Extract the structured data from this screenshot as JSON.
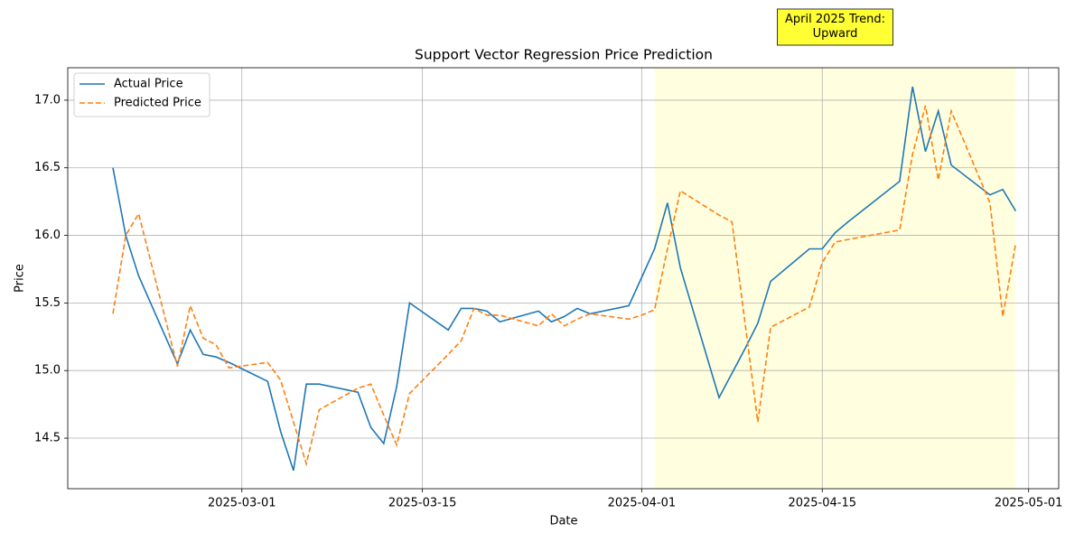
{
  "chart_data": {
    "type": "line",
    "title": "Support Vector Regression Price Prediction",
    "x_label": "Date",
    "y_label": "Price",
    "x": [
      "2025-02-19",
      "2025-02-20",
      "2025-02-21",
      "2025-02-24",
      "2025-02-25",
      "2025-02-26",
      "2025-02-27",
      "2025-02-28",
      "2025-03-03",
      "2025-03-04",
      "2025-03-05",
      "2025-03-06",
      "2025-03-07",
      "2025-03-10",
      "2025-03-11",
      "2025-03-12",
      "2025-03-13",
      "2025-03-14",
      "2025-03-17",
      "2025-03-18",
      "2025-03-19",
      "2025-03-20",
      "2025-03-21",
      "2025-03-24",
      "2025-03-25",
      "2025-03-26",
      "2025-03-27",
      "2025-03-28",
      "2025-03-31",
      "2025-04-01",
      "2025-04-02",
      "2025-04-03",
      "2025-04-04",
      "2025-04-07",
      "2025-04-08",
      "2025-04-09",
      "2025-04-10",
      "2025-04-11",
      "2025-04-14",
      "2025-04-15",
      "2025-04-16",
      "2025-04-17",
      "2025-04-21",
      "2025-04-22",
      "2025-04-23",
      "2025-04-24",
      "2025-04-25",
      "2025-04-28",
      "2025-04-29",
      "2025-04-30"
    ],
    "series": [
      {
        "name": "Actual Price",
        "color": "#1f77b4",
        "style": "solid",
        "values": [
          16.5,
          16.0,
          15.7,
          15.05,
          15.3,
          15.12,
          15.1,
          15.06,
          14.92,
          14.55,
          14.26,
          14.9,
          14.9,
          14.84,
          14.58,
          14.46,
          14.88,
          15.5,
          15.3,
          15.46,
          15.46,
          15.44,
          15.36,
          15.44,
          15.36,
          15.4,
          15.46,
          15.42,
          15.48,
          15.69,
          15.9,
          16.24,
          15.76,
          14.8,
          14.98,
          15.16,
          15.35,
          15.66,
          15.9,
          15.9,
          16.02,
          16.1,
          16.4,
          17.1,
          16.62,
          16.92,
          16.52,
          16.3,
          16.34,
          16.18
        ]
      },
      {
        "name": "Predicted Price",
        "color": "#ff7f0e",
        "style": "dashed",
        "values": [
          15.42,
          16.0,
          16.16,
          15.03,
          15.48,
          15.24,
          15.19,
          15.02,
          15.06,
          14.93,
          14.62,
          14.31,
          14.71,
          14.87,
          14.9,
          14.67,
          14.45,
          14.83,
          15.12,
          15.22,
          15.46,
          15.41,
          15.41,
          15.33,
          15.42,
          15.33,
          15.38,
          15.42,
          15.38,
          15.41,
          15.45,
          15.9,
          16.33,
          16.15,
          16.1,
          15.36,
          14.62,
          15.32,
          15.47,
          15.8,
          15.95,
          15.97,
          16.04,
          16.6,
          16.96,
          16.41,
          16.92,
          16.24,
          15.4,
          15.94
        ]
      }
    ],
    "highlight": {
      "x": [
        "2025-04-02",
        "2025-04-30"
      ],
      "color": "#ffffe0"
    },
    "annotation": {
      "text": "April 2025 Trend:\nUpward",
      "color": "#ffff33"
    },
    "xlim": [
      "2025-02-15T12:00",
      "2025-05-03T08:00"
    ],
    "xticks": [
      "2025-03-01",
      "2025-03-15",
      "2025-04-01",
      "2025-04-15",
      "2025-05-01"
    ],
    "ylim": [
      14.126,
      17.24
    ],
    "yticks": [
      {
        "value": 14.5,
        "label": "14.5"
      },
      {
        "value": 15,
        "label": "15.0"
      },
      {
        "value": 15.5,
        "label": "15.5"
      },
      {
        "value": 16,
        "label": "16.0"
      },
      {
        "value": 16.5,
        "label": "16.5"
      },
      {
        "value": 17,
        "label": "17.0"
      }
    ],
    "grid": true,
    "legend": "upper left"
  }
}
